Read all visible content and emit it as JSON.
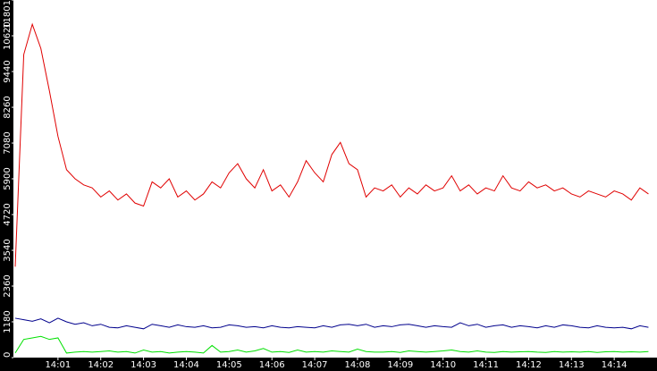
{
  "chart_data": {
    "type": "line",
    "x": [
      0,
      0.2,
      0.4,
      0.6,
      0.8,
      1,
      1.2,
      1.4,
      1.6,
      1.8,
      2,
      2.2,
      2.4,
      2.6,
      2.8,
      3,
      3.2,
      3.4,
      3.6,
      3.8,
      4,
      4.2,
      4.4,
      4.6,
      4.8,
      5,
      5.2,
      5.4,
      5.6,
      5.8,
      6,
      6.2,
      6.4,
      6.6,
      6.8,
      7,
      7.2,
      7.4,
      7.6,
      7.8,
      8,
      8.2,
      8.4,
      8.6,
      8.8,
      9,
      9.2,
      9.4,
      9.6,
      9.8,
      10,
      10.2,
      10.4,
      10.6,
      10.8,
      11,
      11.2,
      11.4,
      11.6,
      11.8,
      12,
      12.2,
      12.4,
      12.6,
      12.8,
      13,
      13.2,
      13.4,
      13.6,
      13.8,
      14,
      14.2,
      14.4,
      14.6,
      14.8
    ],
    "series": [
      {
        "color": "#e00000",
        "values": [
          3000,
          10000,
          11000,
          10200,
          8800,
          7300,
          6200,
          5900,
          5700,
          5600,
          5300,
          5500,
          5200,
          5400,
          5100,
          5000,
          5800,
          5600,
          5900,
          5300,
          5500,
          5200,
          5400,
          5800,
          5600,
          6100,
          6400,
          5900,
          5600,
          6200,
          5500,
          5700,
          5300,
          5800,
          6500,
          6100,
          5800,
          6700,
          7100,
          6400,
          6200,
          5300,
          5600,
          5500,
          5700,
          5300,
          5600,
          5400,
          5700,
          5500,
          5600,
          6000,
          5500,
          5700,
          5400,
          5600,
          5500,
          6000,
          5600,
          5500,
          5800,
          5600,
          5700,
          5500,
          5600,
          5400,
          5300,
          5500,
          5400,
          5300,
          5500,
          5400,
          5200,
          5600,
          5400
        ]
      },
      {
        "color": "#00008c",
        "values": [
          1300,
          1250,
          1200,
          1280,
          1150,
          1300,
          1180,
          1100,
          1150,
          1050,
          1100,
          1000,
          980,
          1050,
          1000,
          950,
          1100,
          1050,
          1000,
          1080,
          1020,
          1000,
          1050,
          980,
          1000,
          1080,
          1050,
          1000,
          1020,
          980,
          1050,
          1000,
          980,
          1020,
          1000,
          980,
          1050,
          1000,
          1080,
          1100,
          1050,
          1100,
          1000,
          1050,
          1020,
          1080,
          1100,
          1050,
          1000,
          1050,
          1020,
          1000,
          1150,
          1050,
          1100,
          1000,
          1050,
          1080,
          1000,
          1050,
          1020,
          980,
          1050,
          1000,
          1080,
          1050,
          1000,
          980,
          1050,
          1000,
          980,
          1000,
          950,
          1050,
          1000
        ]
      },
      {
        "color": "#00e000",
        "values": [
          150,
          600,
          650,
          700,
          600,
          650,
          150,
          180,
          200,
          180,
          200,
          220,
          180,
          200,
          150,
          250,
          180,
          200,
          150,
          180,
          200,
          180,
          150,
          400,
          180,
          200,
          250,
          180,
          220,
          300,
          180,
          200,
          170,
          250,
          180,
          200,
          180,
          220,
          200,
          180,
          280,
          200,
          180,
          180,
          200,
          170,
          220,
          200,
          180,
          200,
          220,
          250,
          200,
          180,
          220,
          180,
          170,
          200,
          180,
          190,
          200,
          180,
          170,
          200,
          180,
          190,
          180,
          200,
          170,
          190,
          200,
          180,
          190,
          180,
          200
        ]
      }
    ],
    "xlim": [
      0,
      15
    ],
    "xticks": [
      {
        "value": 1,
        "label": "14:01"
      },
      {
        "value": 2,
        "label": "14:02"
      },
      {
        "value": 3,
        "label": "14:03"
      },
      {
        "value": 4,
        "label": "14:04"
      },
      {
        "value": 5,
        "label": "14:05"
      },
      {
        "value": 6,
        "label": "14:06"
      },
      {
        "value": 7,
        "label": "14:07"
      },
      {
        "value": 8,
        "label": "14:08"
      },
      {
        "value": 9,
        "label": "14:09"
      },
      {
        "value": 10,
        "label": "14:10"
      },
      {
        "value": 11,
        "label": "14:11"
      },
      {
        "value": 12,
        "label": "14:12"
      },
      {
        "value": 13,
        "label": "14:13"
      },
      {
        "value": 14,
        "label": "14:14"
      }
    ],
    "ylim": [
      0,
      11801
    ],
    "yticks": [
      0,
      1180,
      2360,
      3540,
      4720,
      5900,
      7080,
      8260,
      9440,
      10620,
      11801
    ]
  }
}
